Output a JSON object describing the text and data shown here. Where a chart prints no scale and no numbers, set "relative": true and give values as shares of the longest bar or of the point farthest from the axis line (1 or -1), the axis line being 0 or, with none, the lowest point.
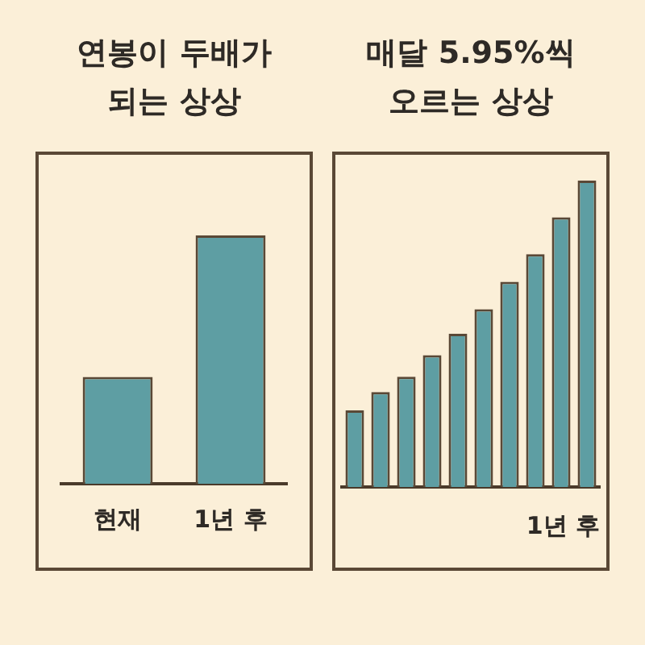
{
  "chart_data": [
    {
      "type": "bar",
      "title": "연봉이 두배가\n되는 상상",
      "relative": true,
      "categories": [
        "현재",
        "1년 후"
      ],
      "color": "#5e9ea3",
      "values": [
        0.43,
        1
      ]
    },
    {
      "type": "bar",
      "title": "매달 5.95%씩\n오르는 상상",
      "relative": true,
      "xlabel": "1년 후",
      "categories": [
        null,
        null,
        null,
        null,
        null,
        null,
        null,
        null,
        null,
        null
      ],
      "color": "#5e9ea3",
      "values": [
        0.25,
        0.31,
        0.36,
        0.43,
        0.5,
        0.58,
        0.67,
        0.76,
        0.88,
        1
      ]
    }
  ]
}
